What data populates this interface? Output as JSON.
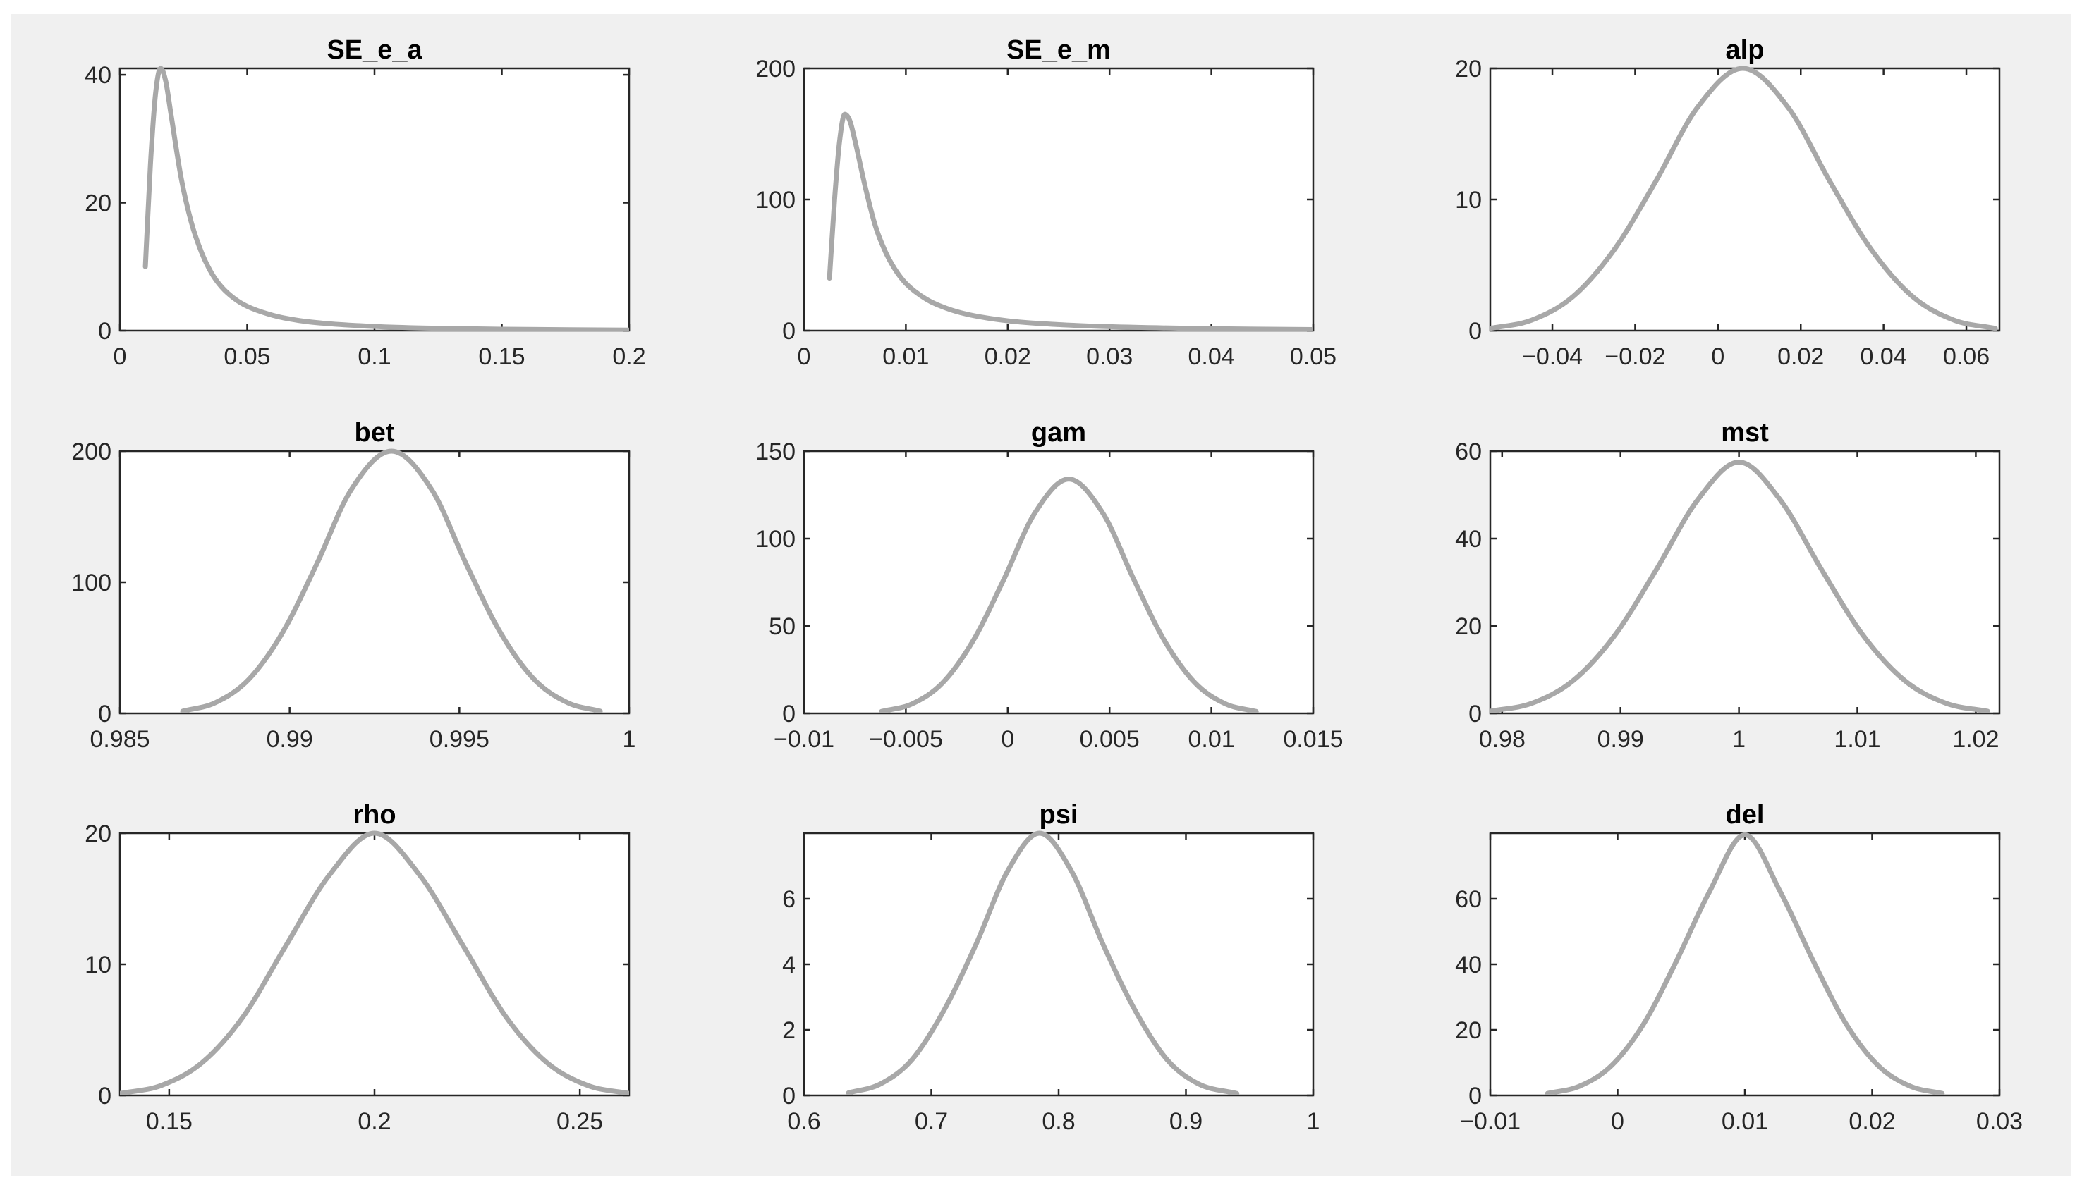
{
  "chart_data": [
    {
      "type": "line",
      "title": "SE_e_a",
      "xlim": [
        0,
        0.2
      ],
      "ylim": [
        0,
        41
      ],
      "xticks": [
        0,
        0.05,
        0.1,
        0.15,
        0.2
      ],
      "xtick_labels": [
        "0",
        "0.05",
        "0.1",
        "0.15",
        "0.2"
      ],
      "yticks": [
        0,
        20,
        40
      ],
      "ytick_labels": [
        "0",
        "20",
        "40"
      ],
      "series": [
        {
          "x": [
            0.01,
            0.012,
            0.014,
            0.016,
            0.018,
            0.02,
            0.024,
            0.028,
            0.032,
            0.036,
            0.04,
            0.045,
            0.05,
            0.06,
            0.07,
            0.08,
            0.1,
            0.12,
            0.15,
            0.2
          ],
          "y": [
            10,
            26,
            37,
            41,
            39,
            34,
            24,
            17,
            12.3,
            9.0,
            6.8,
            5.0,
            3.8,
            2.4,
            1.6,
            1.15,
            0.65,
            0.4,
            0.22,
            0.08
          ]
        }
      ]
    },
    {
      "type": "line",
      "title": "SE_e_m",
      "xlim": [
        0,
        0.05
      ],
      "ylim": [
        0,
        200
      ],
      "xticks": [
        0,
        0.01,
        0.02,
        0.03,
        0.04,
        0.05
      ],
      "xtick_labels": [
        "0",
        "0.01",
        "0.02",
        "0.03",
        "0.04",
        "0.05"
      ],
      "yticks": [
        0,
        100,
        200
      ],
      "ytick_labels": [
        "0",
        "100",
        "200"
      ],
      "series": [
        {
          "x": [
            0.0025,
            0.003,
            0.0035,
            0.004,
            0.0045,
            0.005,
            0.006,
            0.007,
            0.008,
            0.009,
            0.01,
            0.012,
            0.014,
            0.016,
            0.02,
            0.025,
            0.03,
            0.04,
            0.05
          ],
          "y": [
            40,
            100,
            145,
            165,
            160,
            145,
            110,
            80,
            60,
            46,
            36,
            24,
            17,
            12.5,
            7.5,
            4.6,
            3.0,
            1.5,
            0.8
          ]
        }
      ]
    },
    {
      "type": "line",
      "title": "alp",
      "xlim": [
        -0.055,
        0.068
      ],
      "ylim": [
        0,
        20
      ],
      "xticks": [
        -0.04,
        -0.02,
        0,
        0.02,
        0.04,
        0.06
      ],
      "xtick_labels": [
        "-0.04",
        "-0.02",
        "0",
        "0.02",
        "0.04",
        "0.06"
      ],
      "yticks": [
        0,
        10,
        20
      ],
      "ytick_labels": [
        "0",
        "10",
        "20"
      ],
      "series": [
        {
          "x": [
            -0.055,
            -0.045,
            -0.035,
            -0.025,
            -0.015,
            -0.005,
            0.006,
            0.017,
            0.027,
            0.037,
            0.047,
            0.057,
            0.067
          ],
          "y": [
            0.17,
            0.8,
            2.6,
            6.2,
            11.4,
            17.0,
            20.0,
            17.0,
            11.4,
            6.2,
            2.6,
            0.8,
            0.17
          ]
        }
      ]
    },
    {
      "type": "line",
      "title": "bet",
      "xlim": [
        0.985,
        1
      ],
      "ylim": [
        0,
        200
      ],
      "xticks": [
        0.985,
        0.99,
        0.995,
        1
      ],
      "xtick_labels": [
        "0.985",
        "0.99",
        "0.995",
        "1"
      ],
      "yticks": [
        0,
        100,
        200
      ],
      "ytick_labels": [
        "0",
        "100",
        "200"
      ],
      "series": [
        {
          "x": [
            0.98685,
            0.9878,
            0.9888,
            0.9898,
            0.9908,
            0.9918,
            0.993,
            0.9942,
            0.9952,
            0.9962,
            0.9972,
            0.9982,
            0.99915
          ],
          "y": [
            1.7,
            8,
            26,
            62,
            114,
            170,
            200,
            170,
            114,
            62,
            26,
            8,
            1.7
          ]
        }
      ]
    },
    {
      "type": "line",
      "title": "gam",
      "xlim": [
        -0.01,
        0.015
      ],
      "ylim": [
        0,
        150
      ],
      "xticks": [
        -0.01,
        -0.005,
        0,
        0.005,
        0.01,
        0.015
      ],
      "xtick_labels": [
        "-0.01",
        "-0.005",
        "0",
        "0.005",
        "0.01",
        "0.015"
      ],
      "yticks": [
        0,
        50,
        100,
        150
      ],
      "ytick_labels": [
        "0",
        "50",
        "100",
        "150"
      ],
      "series": [
        {
          "x": [
            -0.0062,
            -0.0047,
            -0.0032,
            -0.0017,
            -0.0002,
            0.0013,
            0.003,
            0.0047,
            0.0062,
            0.0077,
            0.0092,
            0.0107,
            0.0122
          ],
          "y": [
            1.1,
            5.4,
            17.4,
            41.5,
            76.4,
            114,
            134,
            114,
            76.4,
            41.5,
            17.4,
            5.4,
            1.1
          ]
        }
      ]
    },
    {
      "type": "line",
      "title": "mst",
      "xlim": [
        0.979,
        1.022
      ],
      "ylim": [
        0,
        60
      ],
      "xticks": [
        0.98,
        0.99,
        1,
        1.01,
        1.02
      ],
      "xtick_labels": [
        "0.98",
        "0.99",
        "1",
        "1.01",
        "1.02"
      ],
      "yticks": [
        0,
        20,
        40,
        60
      ],
      "ytick_labels": [
        "0",
        "20",
        "40",
        "60"
      ],
      "series": [
        {
          "x": [
            0.979,
            0.9825,
            0.986,
            0.9895,
            0.993,
            0.9965,
            1.0,
            1.0035,
            1.007,
            1.0105,
            1.014,
            1.0175,
            1.021
          ],
          "y": [
            0.5,
            2.3,
            7.5,
            17.8,
            32.8,
            48.8,
            57.5,
            48.8,
            32.8,
            17.8,
            7.5,
            2.3,
            0.5
          ]
        }
      ]
    },
    {
      "type": "line",
      "title": "rho",
      "xlim": [
        0.138,
        0.262
      ],
      "ylim": [
        0,
        20
      ],
      "xticks": [
        0.15,
        0.2,
        0.25
      ],
      "xtick_labels": [
        "0.15",
        "0.2",
        "0.25"
      ],
      "yticks": [
        0,
        10,
        20
      ],
      "ytick_labels": [
        "0",
        "10",
        "20"
      ],
      "series": [
        {
          "x": [
            0.138,
            0.148,
            0.158,
            0.168,
            0.178,
            0.189,
            0.2,
            0.211,
            0.222,
            0.232,
            0.242,
            0.252,
            0.262
          ],
          "y": [
            0.15,
            0.75,
            2.5,
            6.0,
            11.2,
            16.8,
            20.0,
            16.8,
            11.2,
            6.0,
            2.5,
            0.75,
            0.15
          ]
        }
      ]
    },
    {
      "type": "line",
      "title": "psi",
      "xlim": [
        0.6,
        1
      ],
      "ylim": [
        0,
        8
      ],
      "xticks": [
        0.6,
        0.7,
        0.8,
        0.9,
        1
      ],
      "xtick_labels": [
        "0.6",
        "0.7",
        "0.8",
        "0.9",
        "1"
      ],
      "yticks": [
        0,
        2,
        4,
        6
      ],
      "ytick_labels": [
        "0",
        "2",
        "4",
        "6"
      ],
      "series": [
        {
          "x": [
            0.635,
            0.66,
            0.685,
            0.71,
            0.735,
            0.76,
            0.785,
            0.81,
            0.835,
            0.86,
            0.885,
            0.91,
            0.94
          ],
          "y": [
            0.08,
            0.35,
            1.1,
            2.6,
            4.6,
            6.85,
            8.0,
            6.85,
            4.6,
            2.6,
            1.1,
            0.35,
            0.06
          ]
        }
      ]
    },
    {
      "type": "line",
      "title": "del",
      "xlim": [
        -0.01,
        0.03
      ],
      "ylim": [
        0,
        80
      ],
      "xticks": [
        -0.01,
        0,
        0.01,
        0.02,
        0.03
      ],
      "xtick_labels": [
        "-0.01",
        "0",
        "0.01",
        "0.02",
        "0.03"
      ],
      "yticks": [
        0,
        20,
        40,
        60
      ],
      "ytick_labels": [
        "0",
        "20",
        "40",
        "60"
      ],
      "series": [
        {
          "x": [
            -0.0055,
            -0.003,
            -0.0005,
            0.002,
            0.0045,
            0.0072,
            0.01,
            0.0128,
            0.0155,
            0.018,
            0.0205,
            0.023,
            0.0255
          ],
          "y": [
            0.6,
            2.8,
            9.0,
            21.5,
            40.0,
            62.0,
            79.5,
            62.0,
            40.0,
            21.5,
            9.0,
            2.8,
            0.6
          ]
        }
      ]
    }
  ],
  "colors": {
    "curve": "#a8a8a8",
    "background": "#f0f0f0",
    "axes": "#ffffff"
  }
}
